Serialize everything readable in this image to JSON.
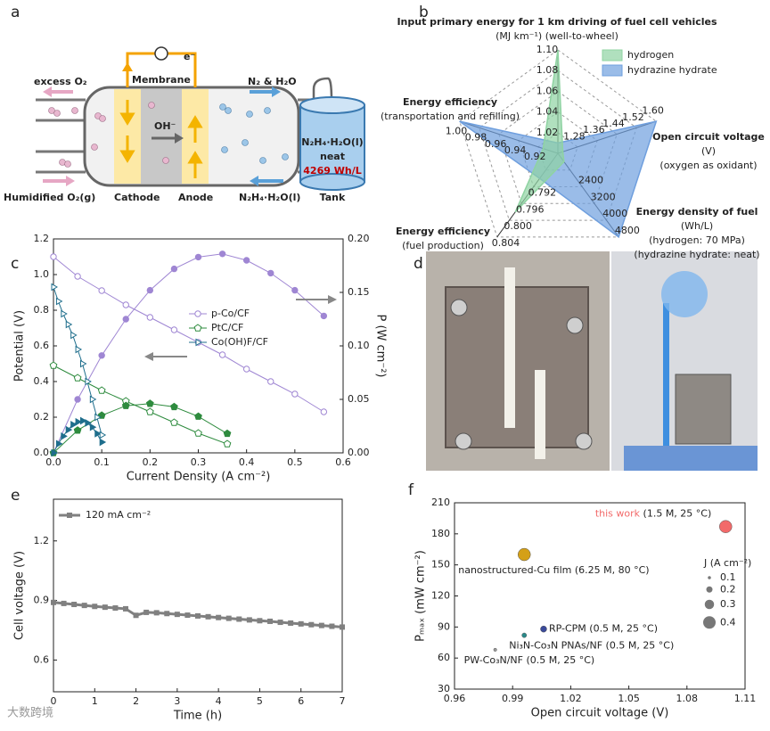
{
  "panel_labels": [
    "a",
    "b",
    "c",
    "d",
    "e",
    "f"
  ],
  "diagram": {
    "excess_o2": "excess O₂",
    "membrane": "Membrane",
    "electron": "e⁻",
    "products": "N₂ & H₂O",
    "hydroxide": "OH⁻",
    "oxygen_in": "Humidified O₂(g)",
    "cathode": "Cathode",
    "anode": "Anode",
    "fuel_in": "N₂H₄·H₂O(l)",
    "tank": "Tank",
    "tank_fuel": "N₂H₄·H₂O(l)",
    "tank_neat": "neat",
    "tank_density": "4269 Wh/L"
  },
  "watermark": "大数跨境",
  "chart_data": [
    {
      "type": "radar",
      "axes": [
        {
          "label": [
            "Input primary energy for 1 km driving of fuel cell vehicles",
            "(MJ km⁻¹) (well-to-wheel)"
          ],
          "lim": [
            1.0,
            1.1
          ],
          "ticks": [
            1.02,
            1.04,
            1.06,
            1.08,
            {
              "value": 1.1,
              "label": "1.10"
            }
          ]
        },
        {
          "label": [
            "Open circuit voltage",
            "(V)",
            "(oxygen as oxidant)"
          ],
          "lim": [
            1.2,
            1.6
          ],
          "ticks": [
            1.28,
            1.36,
            1.44,
            1.52,
            {
              "value": 1.6,
              "label": "1.60"
            }
          ]
        },
        {
          "label": [
            "Energy density of fuel",
            "(Wh/L)",
            "(hydrogen: 70 MPa)",
            "(hydrazine hydrate: neat)"
          ],
          "lim": [
            800,
            4800
          ],
          "ticks": [
            2400,
            3200,
            4000,
            4800
          ]
        },
        {
          "label": [
            "Energy efficiency",
            "(fuel production)"
          ],
          "lim": [
            0.784,
            0.804
          ],
          "ticks": [
            0.792,
            0.796,
            {
              "value": 0.8,
              "label": "0.800"
            },
            0.804
          ]
        },
        {
          "label": [
            "Energy efficiency",
            "(transportation and refilling)"
          ],
          "lim": [
            0.9,
            1.0
          ],
          "ticks": [
            0.92,
            0.94,
            0.96,
            0.98,
            {
              "value": 1.0,
              "label": "1.00"
            }
          ]
        }
      ],
      "series": [
        {
          "name": "hydrogen",
          "color": "#8fd3a2",
          "values": [
            1.1,
            1.22,
            1200,
            0.798,
            0.915
          ]
        },
        {
          "name": "hydrazine hydrate",
          "color": "#6f9fde",
          "values": [
            1.01,
            1.6,
            4800,
            0.79,
            1.0
          ]
        }
      ],
      "legend": "upper right"
    },
    {
      "type": "line",
      "xlabel": "Current Density (A cm⁻²)",
      "ylabel": "Potential (V)",
      "y2label": "P (W cm⁻²)",
      "xlim": [
        0,
        0.6
      ],
      "xticks": [
        {
          "value": 0,
          "label": "0.0"
        },
        0.1,
        0.2,
        0.3,
        0.4,
        0.5,
        0.6
      ],
      "ylim": [
        0,
        1.2
      ],
      "yticks": [
        {
          "value": 0,
          "label": "0.0"
        },
        0.2,
        0.4,
        0.6,
        0.8,
        {
          "value": 1,
          "label": "1.0"
        },
        1.2
      ],
      "y2lim": [
        0,
        0.2
      ],
      "y2ticks": [
        {
          "value": 0,
          "label": "0.00"
        },
        {
          "value": 0.05,
          "label": "0.05"
        },
        {
          "value": 0.1,
          "label": "0.10"
        },
        {
          "value": 0.15,
          "label": "0.15"
        },
        {
          "value": 0.2,
          "label": "0.20"
        }
      ],
      "series": [
        {
          "name": "p-Co/CF",
          "color": "#9f86d3",
          "marker": "circle",
          "x": [
            0,
            0.05,
            0.1,
            0.15,
            0.2,
            0.25,
            0.3,
            0.35,
            0.4,
            0.45,
            0.5,
            0.56
          ],
          "values": [
            1.1,
            0.99,
            0.91,
            0.83,
            0.76,
            0.69,
            0.62,
            0.55,
            0.47,
            0.4,
            0.33,
            0.23
          ],
          "power": [
            0,
            0.05,
            0.091,
            0.125,
            0.152,
            0.172,
            0.183,
            0.186,
            0.18,
            0.168,
            0.152,
            0.128
          ]
        },
        {
          "name": "PtC/CF",
          "color": "#2e8b3e",
          "marker": "pentagon",
          "x": [
            0,
            0.05,
            0.1,
            0.15,
            0.2,
            0.25,
            0.3,
            0.36
          ],
          "values": [
            0.49,
            0.42,
            0.35,
            0.29,
            0.23,
            0.17,
            0.11,
            0.05
          ],
          "power": [
            0,
            0.021,
            0.035,
            0.044,
            0.046,
            0.043,
            0.034,
            0.018
          ]
        },
        {
          "name": "Co(OH)F/CF",
          "color": "#1f6e8c",
          "marker": "triangle",
          "x": [
            0,
            0.01,
            0.02,
            0.03,
            0.04,
            0.05,
            0.06,
            0.07,
            0.08,
            0.09,
            0.1
          ],
          "values": [
            0.93,
            0.85,
            0.78,
            0.72,
            0.66,
            0.58,
            0.5,
            0.4,
            0.3,
            0.2,
            0.1
          ],
          "power": [
            0,
            0.0085,
            0.0156,
            0.0216,
            0.0264,
            0.029,
            0.03,
            0.028,
            0.024,
            0.018,
            0.01
          ]
        }
      ],
      "legend": "center"
    },
    {
      "type": "line",
      "xlabel": "Time (h)",
      "ylabel": "Cell voltage (V)",
      "xlim": [
        0,
        7
      ],
      "xticks": [
        0,
        1,
        2,
        3,
        4,
        5,
        6,
        7
      ],
      "ylim": [
        0.44,
        1.41
      ],
      "yticks": [
        0.6,
        0.9,
        1.2
      ],
      "series": [
        {
          "name": "120 mA cm⁻²",
          "color": "#808080",
          "marker": "square",
          "x": [
            0,
            0.25,
            0.5,
            0.75,
            1,
            1.25,
            1.5,
            1.75,
            2,
            2.25,
            2.5,
            2.75,
            3,
            3.25,
            3.5,
            3.75,
            4,
            4.25,
            4.5,
            4.75,
            5,
            5.25,
            5.5,
            5.75,
            6,
            6.25,
            6.5,
            6.75,
            7
          ],
          "values": [
            0.89,
            0.885,
            0.88,
            0.875,
            0.87,
            0.866,
            0.862,
            0.858,
            0.825,
            0.84,
            0.838,
            0.834,
            0.83,
            0.826,
            0.822,
            0.818,
            0.814,
            0.81,
            0.806,
            0.802,
            0.798,
            0.795,
            0.79,
            0.786,
            0.782,
            0.778,
            0.774,
            0.77,
            0.766
          ]
        }
      ],
      "legend": "upper left"
    },
    {
      "type": "bubble",
      "xlabel": "Open circuit voltage (V)",
      "ylabel": "Pₘₐₓ (mW cm⁻²)",
      "xlim": [
        0.96,
        1.11
      ],
      "xticks": [
        0.96,
        0.99,
        1.02,
        1.05,
        1.08,
        1.11
      ],
      "ylim": [
        30,
        210
      ],
      "yticks": [
        30,
        60,
        90,
        120,
        150,
        180,
        210
      ],
      "points": [
        {
          "label": "this work",
          "note": "(1.5 M, 25 °C)",
          "x": 1.1,
          "y": 187,
          "size": 0.4,
          "color": "#f26a6a"
        },
        {
          "label": "nanostructured-Cu film (6.25 M, 80 °C)",
          "x": 0.996,
          "y": 160,
          "size": 0.4,
          "color": "#d4a017"
        },
        {
          "label": "RP-CPM (0.5 M, 25 °C)",
          "x": 1.006,
          "y": 88,
          "size": 0.2,
          "color": "#3a4a9a"
        },
        {
          "label": "Ni₃N-Co₃N PNAs/NF (0.5 M, 25 °C)",
          "x": 0.996,
          "y": 82,
          "size": 0.15,
          "color": "#2a8a8a"
        },
        {
          "label": "PW-Co₃N/NF (0.5 M, 25 °C)",
          "x": 0.981,
          "y": 68,
          "size": 0.1,
          "color": "#999999"
        }
      ],
      "size_legend": {
        "title": "J (A cm⁻²)",
        "values": [
          0.1,
          0.2,
          0.3,
          0.4
        ]
      }
    }
  ]
}
